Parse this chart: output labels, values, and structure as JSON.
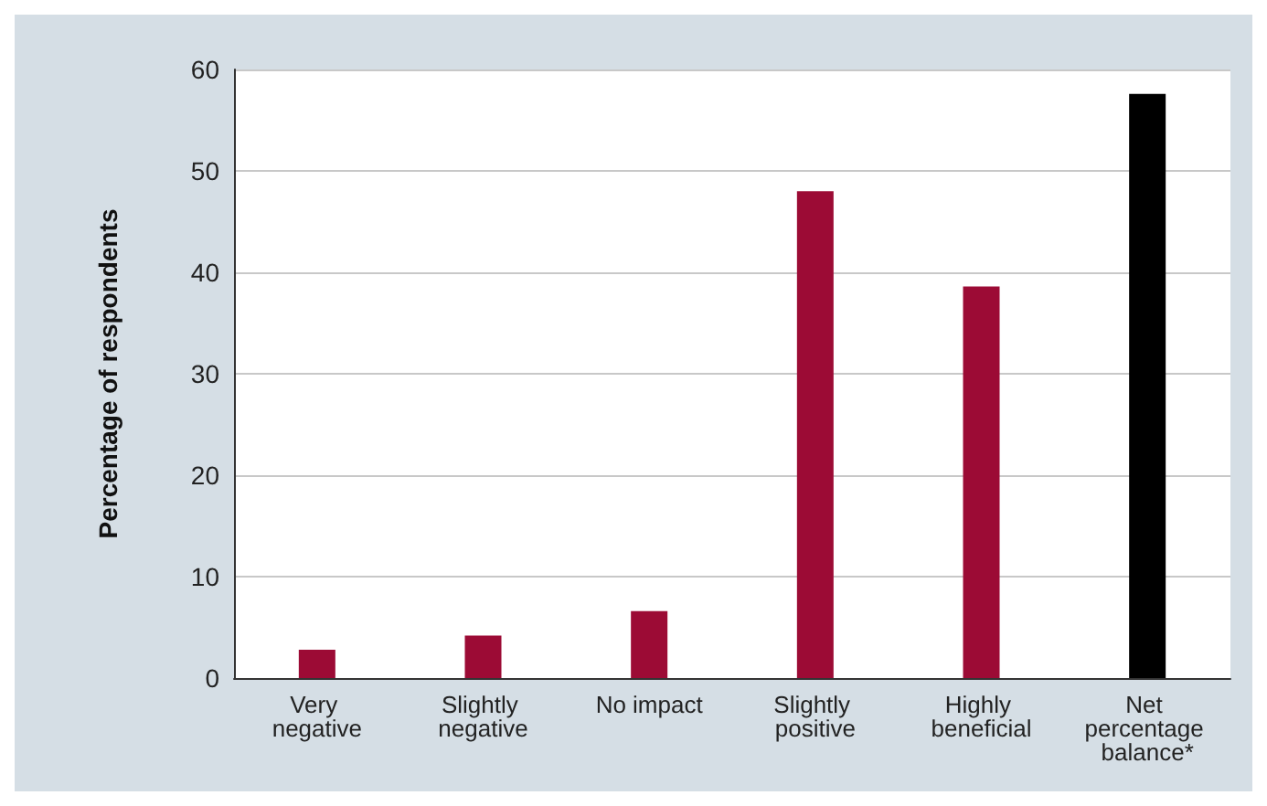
{
  "chart_data": {
    "type": "bar",
    "ylabel": "Percentage of respondents",
    "categories": [
      "Very negative",
      "Slightly negative",
      "No impact",
      "Slightly positive",
      "Highly beneficial",
      "Net percentage balance*"
    ],
    "values": [
      2.8,
      4.2,
      6.6,
      48,
      38.6,
      57.6
    ],
    "colors": [
      "#9c0b35",
      "#9c0b35",
      "#9c0b35",
      "#9c0b35",
      "#9c0b35",
      "#000000"
    ],
    "ylim": [
      0,
      60
    ],
    "yticks": [
      0,
      10,
      20,
      30,
      40,
      50,
      60
    ],
    "grid": "y"
  }
}
